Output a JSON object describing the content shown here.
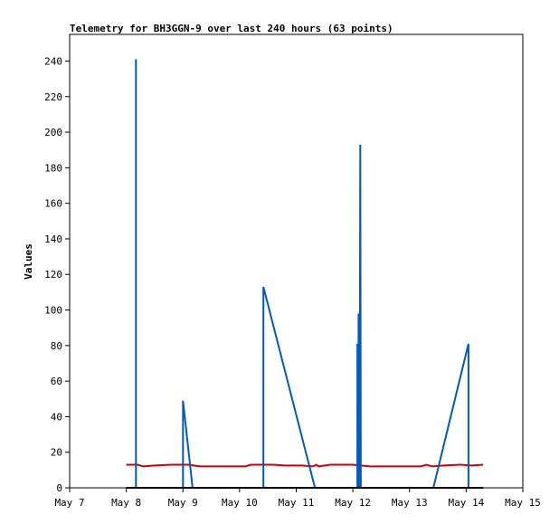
{
  "chart_data": {
    "type": "line",
    "title": "Telemetry for BH3GGN-9 over last 240 hours (63 points)",
    "xlabel": "",
    "ylabel": "Values",
    "x_ticks": [
      "May 7",
      "May 8",
      "May 9",
      "May 10",
      "May 11",
      "May 12",
      "May 13",
      "May 14",
      "May 15"
    ],
    "xlim": [
      7,
      15
    ],
    "y_ticks": [
      0,
      20,
      40,
      60,
      80,
      100,
      120,
      140,
      160,
      180,
      200,
      220,
      240
    ],
    "ylim": [
      0,
      255
    ],
    "grid": false,
    "series": [
      {
        "color": "#cc0000",
        "points": [
          [
            8.0,
            13
          ],
          [
            8.2,
            13
          ],
          [
            8.3,
            12
          ],
          [
            8.5,
            12.5
          ],
          [
            8.8,
            13
          ],
          [
            9.1,
            13
          ],
          [
            9.3,
            12
          ],
          [
            10.1,
            12
          ],
          [
            10.2,
            13
          ],
          [
            10.6,
            13
          ],
          [
            10.8,
            12.5
          ],
          [
            11.1,
            12.5
          ],
          [
            11.3,
            12
          ],
          [
            11.35,
            13
          ],
          [
            11.4,
            12
          ],
          [
            11.5,
            12.5
          ],
          [
            11.6,
            13
          ],
          [
            12.0,
            13
          ],
          [
            12.3,
            12
          ],
          [
            13.2,
            12
          ],
          [
            13.3,
            13
          ],
          [
            13.4,
            12
          ],
          [
            13.6,
            12.5
          ],
          [
            13.9,
            13
          ],
          [
            14.1,
            12.5
          ],
          [
            14.3,
            13
          ]
        ]
      },
      {
        "color": "#005bbb",
        "points": [
          [
            8.0,
            0
          ],
          [
            8.17,
            0
          ],
          [
            8.17,
            241
          ],
          [
            8.17,
            0
          ],
          [
            9.0,
            0
          ],
          [
            9.0,
            49
          ],
          [
            9.17,
            0
          ],
          [
            10.42,
            0
          ],
          [
            10.42,
            113
          ],
          [
            11.33,
            0
          ],
          [
            12.08,
            0
          ],
          [
            12.08,
            81
          ],
          [
            12.1,
            0
          ],
          [
            12.1,
            98
          ],
          [
            12.12,
            0
          ],
          [
            12.13,
            193
          ],
          [
            12.14,
            0
          ],
          [
            13.42,
            0
          ],
          [
            14.04,
            81
          ],
          [
            14.04,
            0
          ],
          [
            14.3,
            0
          ]
        ]
      },
      {
        "color": "#000000",
        "points": [
          [
            8.0,
            0
          ],
          [
            14.3,
            0
          ]
        ]
      }
    ]
  }
}
